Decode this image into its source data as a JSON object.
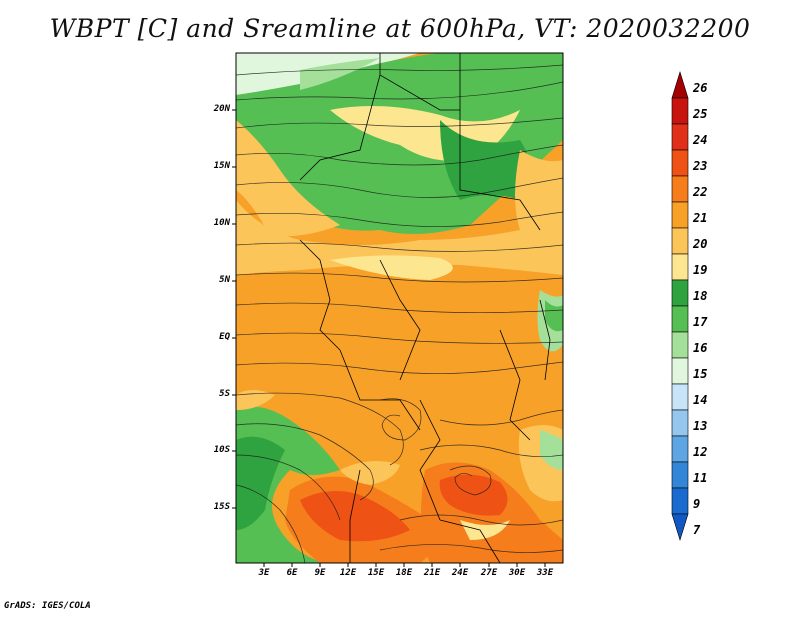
{
  "title": "WBPT [C] and Sreamline at 600hPa, VT: 2020032200",
  "credit": "GrADS: IGES/COLA",
  "map": {
    "lat_ticks": [
      "20N",
      "15N",
      "10N",
      "5N",
      "EQ",
      "5S",
      "10S",
      "15S"
    ],
    "lon_ticks": [
      "3E",
      "6E",
      "9E",
      "12E",
      "15E",
      "18E",
      "21E",
      "24E",
      "27E",
      "30E",
      "33E"
    ],
    "lon_range": [
      0,
      35
    ],
    "lat_range": [
      -20,
      24.5
    ],
    "variable": "wet-bulb potential temperature (WBPT) shaded, 600hPa streamlines overlaid"
  },
  "colorbar": {
    "levels": [
      "26",
      "25",
      "24",
      "23",
      "22",
      "21",
      "20",
      "19",
      "18",
      "17",
      "16",
      "15",
      "14",
      "13",
      "12",
      "11",
      "9",
      "7"
    ],
    "colors": [
      "#a50000",
      "#c8140e",
      "#e0301a",
      "#ee5215",
      "#f57d1c",
      "#f8a128",
      "#fcc55a",
      "#fde690",
      "#2fa33f",
      "#56bf54",
      "#a5e09b",
      "#e1f7dd",
      "#c7e4f8",
      "#94c6ee",
      "#5da5e3",
      "#3286d8",
      "#1a6bd0",
      "#1158c4"
    ]
  }
}
